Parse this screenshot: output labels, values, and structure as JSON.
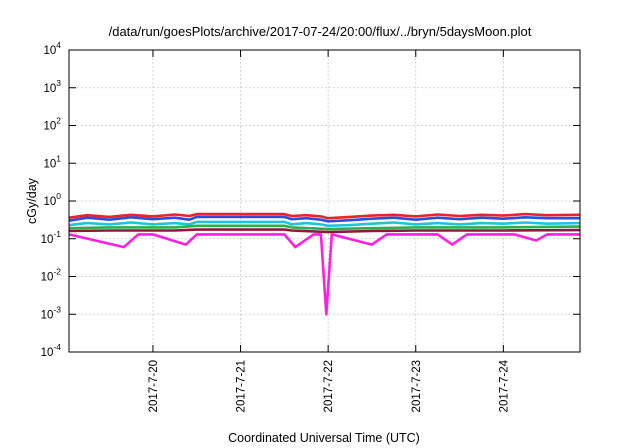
{
  "chart_data": {
    "type": "line",
    "title": "/data/run/goesPlots/archive/2017-07-24/20:00/flux/../bryn/5daysMoon.plot",
    "xlabel": "Coordinated Universal Time (UTC)",
    "ylabel": "cGy/day",
    "yscale": "log",
    "ylim": [
      0.0001,
      10000
    ],
    "xlim": [
      "2017-07-19 01:00",
      "2017-07-24 21:00"
    ],
    "grid": true,
    "y_ticks": [
      {
        "value": 0.0001,
        "base": "10",
        "exp": "-4"
      },
      {
        "value": 0.001,
        "base": "10",
        "exp": "-3"
      },
      {
        "value": 0.01,
        "base": "10",
        "exp": "-2"
      },
      {
        "value": 0.1,
        "base": "10",
        "exp": "-1"
      },
      {
        "value": 1,
        "base": "10",
        "exp": "0"
      },
      {
        "value": 10,
        "base": "10",
        "exp": "1"
      },
      {
        "value": 100,
        "base": "10",
        "exp": "2"
      },
      {
        "value": 1000,
        "base": "10",
        "exp": "3"
      },
      {
        "value": 10000,
        "base": "10",
        "exp": "4"
      }
    ],
    "x_ticks": [
      {
        "value": "2017-07-20",
        "label": "2017-7-20"
      },
      {
        "value": "2017-07-21",
        "label": "2017-7-21"
      },
      {
        "value": "2017-07-22",
        "label": "2017-7-22"
      },
      {
        "value": "2017-07-23",
        "label": "2017-7-23"
      },
      {
        "value": "2017-07-24",
        "label": "2017-7-24"
      }
    ],
    "series": [
      {
        "color": "#e8232c",
        "base": 0.4,
        "values": [
          [
            "2017-07-19 01:00",
            0.36
          ],
          [
            "2017-07-19 06:00",
            0.42
          ],
          [
            "2017-07-19 12:00",
            0.38
          ],
          [
            "2017-07-19 18:00",
            0.43
          ],
          [
            "2017-07-20 00:00",
            0.39
          ],
          [
            "2017-07-20 06:00",
            0.44
          ],
          [
            "2017-07-20 10:00",
            0.4
          ],
          [
            "2017-07-20 12:00",
            0.45
          ],
          [
            "2017-07-21 12:00",
            0.45
          ],
          [
            "2017-07-21 14:00",
            0.4
          ],
          [
            "2017-07-21 18:00",
            0.42
          ],
          [
            "2017-07-21 22:00",
            0.39
          ],
          [
            "2017-07-22 00:00",
            0.35
          ],
          [
            "2017-07-22 06:00",
            0.38
          ],
          [
            "2017-07-22 12:00",
            0.41
          ],
          [
            "2017-07-22 18:00",
            0.43
          ],
          [
            "2017-07-23 00:00",
            0.39
          ],
          [
            "2017-07-23 06:00",
            0.44
          ],
          [
            "2017-07-23 12:00",
            0.4
          ],
          [
            "2017-07-23 18:00",
            0.43
          ],
          [
            "2017-07-24 00:00",
            0.41
          ],
          [
            "2017-07-24 06:00",
            0.45
          ],
          [
            "2017-07-24 12:00",
            0.42
          ],
          [
            "2017-07-24 21:00",
            0.43
          ]
        ]
      },
      {
        "color": "#2b4fd8",
        "base": 0.33,
        "values": [
          [
            "2017-07-19 01:00",
            0.3
          ],
          [
            "2017-07-19 06:00",
            0.36
          ],
          [
            "2017-07-19 12:00",
            0.32
          ],
          [
            "2017-07-19 18:00",
            0.37
          ],
          [
            "2017-07-20 00:00",
            0.33
          ],
          [
            "2017-07-20 06:00",
            0.36
          ],
          [
            "2017-07-20 10:00",
            0.32
          ],
          [
            "2017-07-20 12:00",
            0.38
          ],
          [
            "2017-07-21 12:00",
            0.38
          ],
          [
            "2017-07-21 14:00",
            0.33
          ],
          [
            "2017-07-21 18:00",
            0.35
          ],
          [
            "2017-07-21 22:00",
            0.32
          ],
          [
            "2017-07-22 00:00",
            0.29
          ],
          [
            "2017-07-22 06:00",
            0.31
          ],
          [
            "2017-07-22 12:00",
            0.34
          ],
          [
            "2017-07-22 18:00",
            0.36
          ],
          [
            "2017-07-23 00:00",
            0.32
          ],
          [
            "2017-07-23 06:00",
            0.36
          ],
          [
            "2017-07-23 12:00",
            0.33
          ],
          [
            "2017-07-23 18:00",
            0.36
          ],
          [
            "2017-07-24 00:00",
            0.34
          ],
          [
            "2017-07-24 06:00",
            0.37
          ],
          [
            "2017-07-24 12:00",
            0.35
          ],
          [
            "2017-07-24 21:00",
            0.35
          ]
        ]
      },
      {
        "color": "#21c4d6",
        "base": 0.25,
        "values": [
          [
            "2017-07-19 01:00",
            0.23
          ],
          [
            "2017-07-19 06:00",
            0.26
          ],
          [
            "2017-07-19 12:00",
            0.24
          ],
          [
            "2017-07-19 18:00",
            0.27
          ],
          [
            "2017-07-20 00:00",
            0.24
          ],
          [
            "2017-07-20 06:00",
            0.26
          ],
          [
            "2017-07-20 10:00",
            0.24
          ],
          [
            "2017-07-20 12:00",
            0.28
          ],
          [
            "2017-07-21 12:00",
            0.28
          ],
          [
            "2017-07-21 14:00",
            0.24
          ],
          [
            "2017-07-21 18:00",
            0.26
          ],
          [
            "2017-07-21 22:00",
            0.24
          ],
          [
            "2017-07-22 00:00",
            0.22
          ],
          [
            "2017-07-22 06:00",
            0.23
          ],
          [
            "2017-07-22 12:00",
            0.25
          ],
          [
            "2017-07-22 18:00",
            0.27
          ],
          [
            "2017-07-23 00:00",
            0.24
          ],
          [
            "2017-07-23 06:00",
            0.26
          ],
          [
            "2017-07-23 12:00",
            0.24
          ],
          [
            "2017-07-23 18:00",
            0.26
          ],
          [
            "2017-07-24 00:00",
            0.25
          ],
          [
            "2017-07-24 06:00",
            0.27
          ],
          [
            "2017-07-24 12:00",
            0.25
          ],
          [
            "2017-07-24 21:00",
            0.26
          ]
        ]
      },
      {
        "color": "#2fae4a",
        "base": 0.2,
        "values": [
          [
            "2017-07-19 01:00",
            0.19
          ],
          [
            "2017-07-19 12:00",
            0.2
          ],
          [
            "2017-07-20 06:00",
            0.2
          ],
          [
            "2017-07-20 12:00",
            0.22
          ],
          [
            "2017-07-21 12:00",
            0.22
          ],
          [
            "2017-07-21 14:00",
            0.2
          ],
          [
            "2017-07-22 00:00",
            0.18
          ],
          [
            "2017-07-22 12:00",
            0.19
          ],
          [
            "2017-07-23 00:00",
            0.2
          ],
          [
            "2017-07-23 12:00",
            0.2
          ],
          [
            "2017-07-24 00:00",
            0.2
          ],
          [
            "2017-07-24 21:00",
            0.21
          ]
        ]
      },
      {
        "color": "#8b1a3a",
        "base": 0.165,
        "values": [
          [
            "2017-07-19 01:00",
            0.16
          ],
          [
            "2017-07-19 12:00",
            0.165
          ],
          [
            "2017-07-20 06:00",
            0.165
          ],
          [
            "2017-07-20 12:00",
            0.175
          ],
          [
            "2017-07-21 12:00",
            0.175
          ],
          [
            "2017-07-21 14:00",
            0.165
          ],
          [
            "2017-07-22 00:00",
            0.15
          ],
          [
            "2017-07-22 12:00",
            0.16
          ],
          [
            "2017-07-23 00:00",
            0.165
          ],
          [
            "2017-07-23 12:00",
            0.165
          ],
          [
            "2017-07-24 00:00",
            0.165
          ],
          [
            "2017-07-24 21:00",
            0.17
          ]
        ]
      },
      {
        "color": "#ff1fe0",
        "base": 0.13,
        "values": [
          [
            "2017-07-19 01:00",
            0.13
          ],
          [
            "2017-07-19 16:00",
            0.06
          ],
          [
            "2017-07-19 20:00",
            0.13
          ],
          [
            "2017-07-20 00:00",
            0.13
          ],
          [
            "2017-07-20 09:00",
            0.07
          ],
          [
            "2017-07-20 12:00",
            0.13
          ],
          [
            "2017-07-21 12:00",
            0.13
          ],
          [
            "2017-07-21 15:00",
            0.06
          ],
          [
            "2017-07-21 20:00",
            0.13
          ],
          [
            "2017-07-21 22:00",
            0.13
          ],
          [
            "2017-07-21 23:30",
            0.001
          ],
          [
            "2017-07-22 01:00",
            0.13
          ],
          [
            "2017-07-22 12:00",
            0.07
          ],
          [
            "2017-07-22 16:00",
            0.13
          ],
          [
            "2017-07-23 06:00",
            0.13
          ],
          [
            "2017-07-23 10:00",
            0.07
          ],
          [
            "2017-07-23 14:00",
            0.13
          ],
          [
            "2017-07-24 03:00",
            0.13
          ],
          [
            "2017-07-24 09:00",
            0.09
          ],
          [
            "2017-07-24 12:00",
            0.13
          ],
          [
            "2017-07-24 21:00",
            0.13
          ]
        ]
      }
    ]
  }
}
